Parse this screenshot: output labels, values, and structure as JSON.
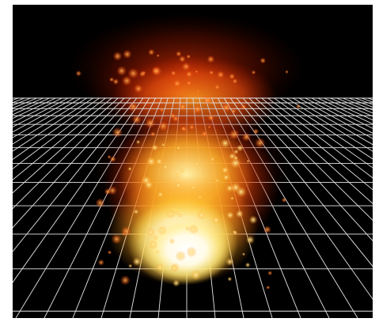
{
  "scene": {
    "description_visible_text": "",
    "colors": {
      "background": "#000000",
      "frame": "#ffffff",
      "grid_line": "#e6e6e6",
      "fire_core": "#ffffff",
      "fire_inner": "#fff4a8",
      "fire_mid": "#ffb020",
      "fire_outer": "#ff5a10",
      "fire_edge": "#b01800",
      "smoke_top": "#7a1200"
    },
    "icons": {
      "fire": "fire-particles-icon",
      "grid": "ground-grid-icon"
    }
  }
}
